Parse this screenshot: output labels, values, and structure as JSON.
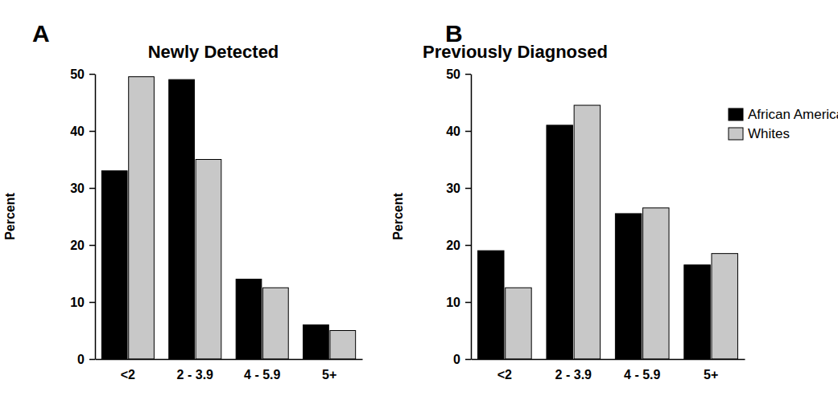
{
  "chart_data": [
    {
      "type": "bar",
      "panel": "A",
      "title": "Newly Detected",
      "y_label": "Percent",
      "categories": [
        "<2",
        "2 - 3.9",
        "4 - 5.9",
        "5+"
      ],
      "series": [
        {
          "name": "African Americans",
          "color": "#000000",
          "values": [
            33,
            49,
            14,
            6
          ]
        },
        {
          "name": "Whites",
          "color": "#c8c8c8",
          "values": [
            49.5,
            35,
            12.5,
            5
          ]
        }
      ],
      "ylim": [
        0,
        50
      ],
      "yticks": [
        0,
        10,
        20,
        30,
        40,
        50
      ],
      "grid": false,
      "legend": false
    },
    {
      "type": "bar",
      "panel": "B",
      "title": "Previously Diagnosed",
      "y_label": "Percent",
      "categories": [
        "<2",
        "2 - 3.9",
        "4 - 5.9",
        "5+"
      ],
      "series": [
        {
          "name": "African Americans",
          "color": "#000000",
          "values": [
            19,
            41,
            25.5,
            16.5
          ]
        },
        {
          "name": "Whites",
          "color": "#c8c8c8",
          "values": [
            12.5,
            44.5,
            26.5,
            18.5
          ]
        }
      ],
      "ylim": [
        0,
        50
      ],
      "yticks": [
        0,
        10,
        20,
        30,
        40,
        50
      ],
      "grid": false,
      "legend": "upper right"
    }
  ]
}
